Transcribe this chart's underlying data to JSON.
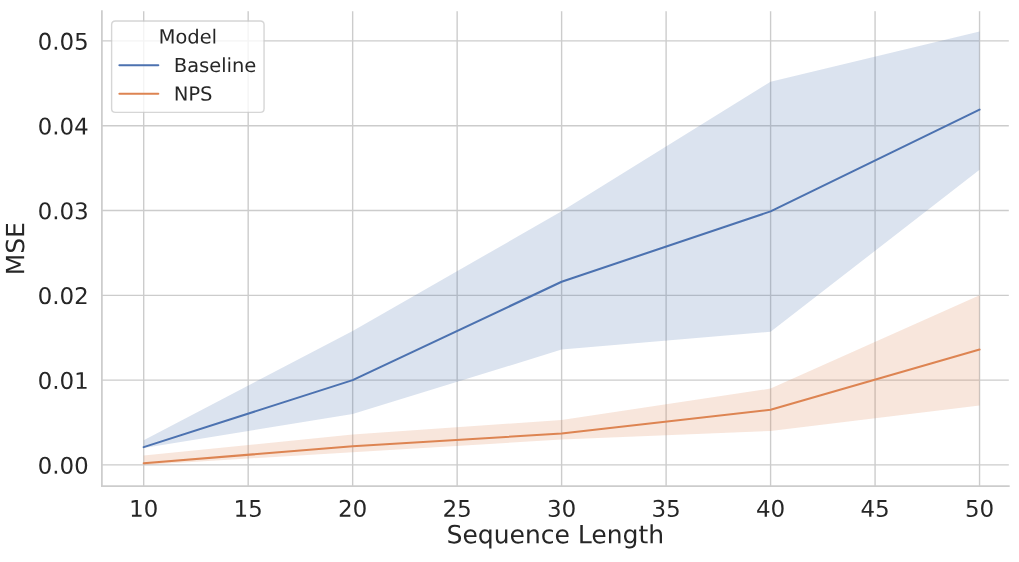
{
  "chart_data": {
    "type": "line",
    "xlabel": "Sequence Length",
    "ylabel": "MSE",
    "legend_title": "Model",
    "x": [
      10,
      20,
      30,
      40,
      50
    ],
    "series": [
      {
        "name": "Baseline",
        "color": "#4c72b0",
        "values": [
          0.0021,
          0.01,
          0.0216,
          0.0299,
          0.0419
        ],
        "lower": [
          0.002,
          0.006,
          0.0136,
          0.0157,
          0.0348
        ],
        "upper": [
          0.0029,
          0.0158,
          0.0299,
          0.0452,
          0.0511
        ]
      },
      {
        "name": "NPS",
        "color": "#dd8452",
        "values": [
          0.0002,
          0.0022,
          0.0037,
          0.0065,
          0.0136
        ],
        "lower": [
          0.0,
          0.0015,
          0.003,
          0.004,
          0.007
        ],
        "upper": [
          0.0011,
          0.0036,
          0.0053,
          0.009,
          0.02
        ]
      }
    ],
    "xlim": [
      8,
      51.4
    ],
    "ylim": [
      -0.0025,
      0.0535
    ],
    "xticks": [
      10,
      15,
      20,
      25,
      30,
      35,
      40,
      45,
      50
    ],
    "yticks": [
      {
        "value": 0,
        "label": "0.00"
      },
      {
        "value": 0.01,
        "label": "0.01"
      },
      {
        "value": 0.02,
        "label": "0.02"
      },
      {
        "value": 0.03,
        "label": "0.03"
      },
      {
        "value": 0.04,
        "label": "0.04"
      },
      {
        "value": 0.05,
        "label": "0.05"
      }
    ],
    "grid": true,
    "legend": "top left"
  }
}
